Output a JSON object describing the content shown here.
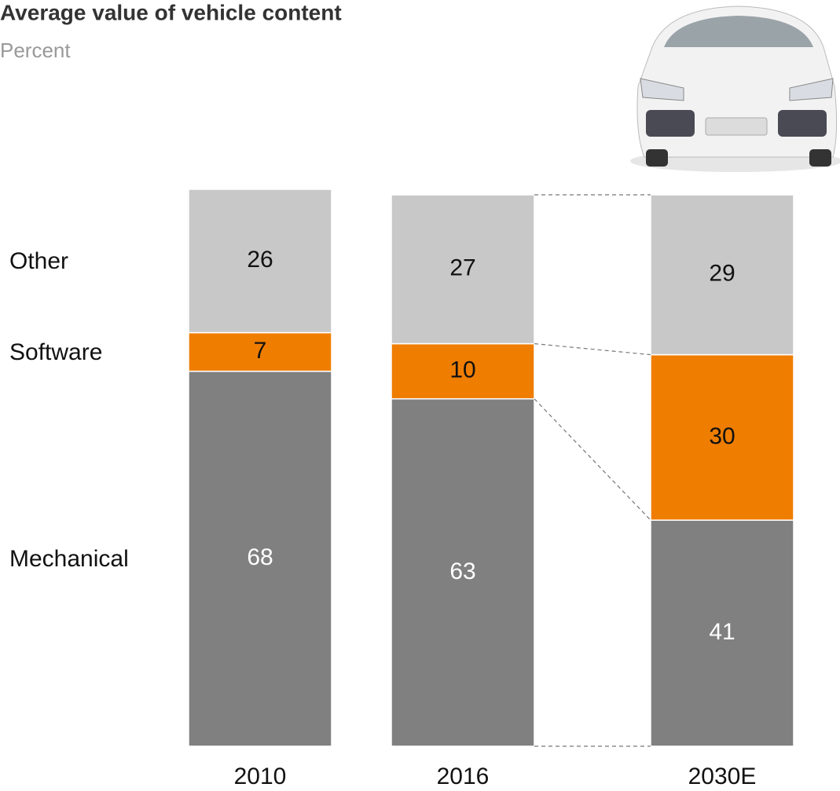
{
  "chart_data": {
    "type": "stacked-bar",
    "title": "Average value of vehicle content",
    "subtitle": "Percent",
    "categories": [
      "2010",
      "2016",
      "2030E"
    ],
    "series": [
      {
        "name": "Mechanical",
        "color": "#808080",
        "values": [
          68,
          63,
          41
        ]
      },
      {
        "name": "Software",
        "color": "#ef7d00",
        "values": [
          7,
          10,
          30
        ]
      },
      {
        "name": "Other",
        "color": "#c8c8c8",
        "values": [
          26,
          27,
          29
        ]
      }
    ],
    "ylim": [
      0,
      100
    ]
  }
}
